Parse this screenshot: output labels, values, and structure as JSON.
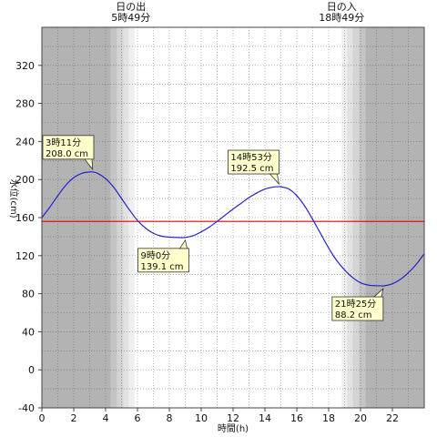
{
  "sun": {
    "sunrise_label": "日の出",
    "sunrise_time": "5時49分",
    "sunset_label": "日の入",
    "sunset_time": "18時49分",
    "sunrise_h": 5.817,
    "sunset_h": 18.817
  },
  "colors": {
    "series": "#2222cc",
    "mean_line": "#dd0000",
    "night": "#b3b3b3",
    "annotation_bg": "#ffffcc"
  },
  "chart_data": {
    "type": "line",
    "xlabel": "時間(h)",
    "ylabel": "水位(cm)",
    "xlim": [
      0,
      24
    ],
    "ylim": [
      -40,
      360
    ],
    "x_ticks": [
      0,
      2,
      4,
      6,
      8,
      10,
      12,
      14,
      16,
      18,
      20,
      22
    ],
    "y_ticks": [
      -40,
      0,
      40,
      80,
      120,
      160,
      200,
      240,
      280,
      320
    ],
    "grid": true,
    "mean_level": 156,
    "series": [
      {
        "x": [
          0,
          0.5,
          1,
          1.5,
          2,
          2.5,
          3,
          3.18,
          3.5,
          4,
          4.5,
          5,
          5.5,
          6,
          6.5,
          7,
          7.5,
          8,
          8.5,
          9,
          9.5,
          10,
          10.5,
          11,
          11.5,
          12,
          12.5,
          13,
          13.5,
          14,
          14.5,
          14.88,
          15,
          15.5,
          16,
          16.5,
          17,
          17.5,
          18,
          18.5,
          19,
          19.5,
          20,
          20.5,
          21,
          21.42,
          21.5,
          22,
          22.5,
          23,
          23.5,
          24
        ],
        "values": [
          160,
          171,
          183,
          194,
          202,
          206.5,
          208,
          208,
          206.5,
          201,
          192,
          180,
          168,
          157,
          149,
          143.5,
          140.5,
          139.5,
          139.1,
          139.1,
          141,
          145,
          150,
          156,
          162.5,
          169,
          175,
          181,
          186,
          190,
          192,
          192.5,
          192.4,
          190,
          183,
          172,
          158,
          143,
          128,
          115,
          105,
          97,
          91.5,
          89,
          88.4,
          88.2,
          88.3,
          90.5,
          95,
          102,
          111,
          122
        ]
      }
    ],
    "annotations": [
      {
        "time": "3時11分",
        "value": "208.0 cm",
        "x": 3.18,
        "y": 208.0
      },
      {
        "time": "9時0分",
        "value": "139.1 cm",
        "x": 9.0,
        "y": 139.1
      },
      {
        "time": "14時53分",
        "value": "192.5 cm",
        "x": 14.88,
        "y": 192.5
      },
      {
        "time": "21時25分",
        "value": "88.2 cm",
        "x": 21.42,
        "y": 88.2
      }
    ]
  }
}
